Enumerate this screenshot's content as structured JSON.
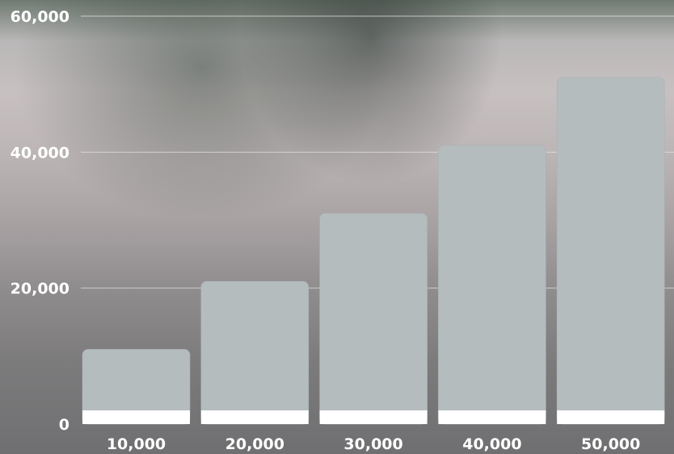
{
  "chart_data": {
    "type": "bar",
    "categories": [
      "10,000",
      "20,000",
      "30,000",
      "40,000",
      "50,000"
    ],
    "values": [
      11000,
      21000,
      31000,
      41000,
      51000
    ],
    "ylim": [
      0,
      60000
    ],
    "yticks": [
      "0",
      "20,000",
      "40,000",
      "60,000"
    ],
    "ytick_values": [
      0,
      20000,
      40000,
      60000
    ],
    "grid": true,
    "colors": {
      "bar": "#b5bcbd",
      "bar_base": "#ffffff",
      "grid": "#e4e2e3",
      "text": "#ffffff"
    }
  }
}
